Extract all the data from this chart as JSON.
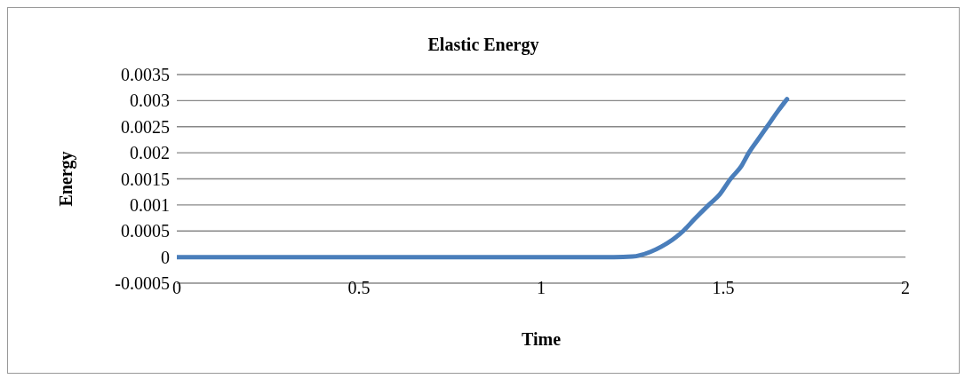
{
  "chart_data": {
    "type": "line",
    "title": "Elastic Energy",
    "xlabel": "Time",
    "ylabel": "Energy",
    "series": [
      {
        "color": "#4a7ebb",
        "x": [
          0,
          0.5,
          1,
          1.2,
          1.25,
          1.3,
          1.33,
          1.36,
          1.39,
          1.42,
          1.46,
          1.49,
          1.52,
          1.55,
          1.57,
          1.6,
          1.62,
          1.65,
          1.675
        ],
        "values": [
          0,
          0,
          0,
          0,
          1e-05,
          0.0001,
          0.0002,
          0.00033,
          0.0005,
          0.00072,
          0.001,
          0.0012,
          0.0015,
          0.00175,
          0.002,
          0.0023,
          0.0025,
          0.0028,
          0.00303
        ]
      }
    ],
    "xlim": [
      0,
      2
    ],
    "xticks": [
      0,
      0.5,
      1,
      1.5,
      2
    ],
    "ylim": [
      -0.0005,
      0.0035
    ],
    "yticks": [
      -0.0005,
      0,
      0.0005,
      0.001,
      0.0015,
      0.002,
      0.0025,
      0.003,
      0.0035
    ],
    "grid": "y",
    "legend": false,
    "marker": "none",
    "line_style": "solid"
  }
}
